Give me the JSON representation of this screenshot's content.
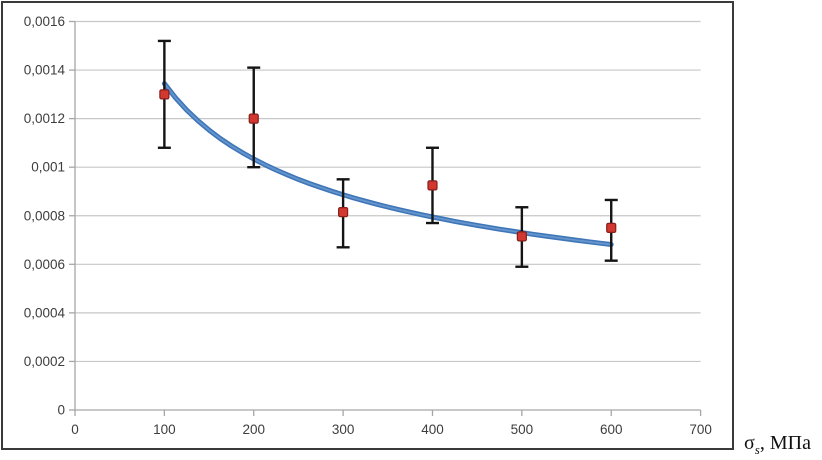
{
  "figure": {
    "x_axis_title": {
      "symbol": "σ",
      "subscript": "s",
      "rest": ", МПа"
    }
  },
  "chart_data": {
    "type": "scatter",
    "title": "",
    "xlabel": "σ_s, МПа",
    "ylabel": "",
    "xlim": [
      0,
      700
    ],
    "ylim": [
      0,
      0.0016
    ],
    "x_ticks": [
      0,
      100,
      200,
      300,
      400,
      500,
      600,
      700
    ],
    "x_tick_labels": [
      "0",
      "100",
      "200",
      "300",
      "400",
      "500",
      "600",
      "700"
    ],
    "y_ticks": [
      0,
      0.0002,
      0.0004,
      0.0006,
      0.0008,
      0.001,
      0.0012,
      0.0014,
      0.0016
    ],
    "y_tick_labels": [
      "0",
      "0,0002",
      "0,0004",
      "0,0006",
      "0,0008",
      "0,001",
      "0,0012",
      "0,0014",
      "0,0016"
    ],
    "grid": "horizontal-only",
    "legend": "none",
    "series": [
      {
        "name": "measured-points-with-error-bars",
        "type": "scatter",
        "marker": "square",
        "x": [
          100,
          200,
          300,
          400,
          500,
          600
        ],
        "y": [
          0.0013,
          0.0012,
          0.000815,
          0.000925,
          0.000715,
          0.00075
        ],
        "y_err_low": [
          0.00108,
          0.001,
          0.00067,
          0.00077,
          0.00059,
          0.000615
        ],
        "y_err_high": [
          0.00152,
          0.00141,
          0.00095,
          0.00108,
          0.000835,
          0.000865
        ]
      },
      {
        "name": "power-trendline",
        "type": "line",
        "fit": {
          "kind": "power",
          "a": 0.0077,
          "b": -0.379
        },
        "x_range": [
          100,
          600
        ]
      }
    ],
    "colors": {
      "trendline": "#3e76b8",
      "trendline_sheen": "#6f9ed2",
      "marker_fill": "#d23730",
      "marker_edge": "#871f1b",
      "error_bar": "#141414",
      "gridline": "#c7c7c7",
      "axis_line": "#a6a6a6",
      "tick_label": "#3d3d3d",
      "border": "#3a3a3a",
      "background": "#ffffff"
    }
  }
}
